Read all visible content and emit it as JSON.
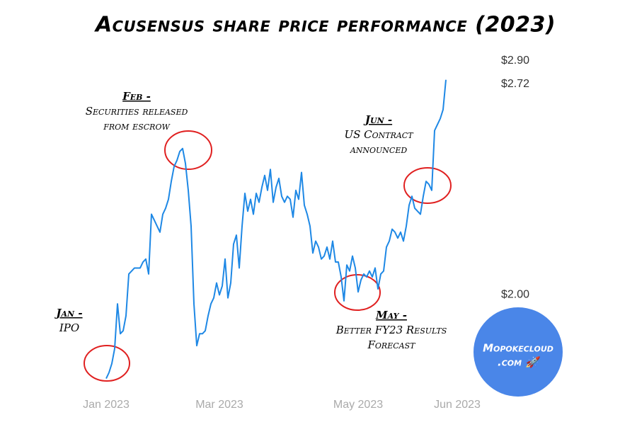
{
  "chart_data": {
    "type": "line",
    "title": "Acusensus share price performance (2023)",
    "color": "#1e88e5",
    "categories": [
      "Jan 2023",
      null,
      null,
      null,
      null,
      null,
      null,
      null,
      null,
      null,
      null,
      null,
      null,
      null,
      null,
      null,
      null,
      null,
      null,
      null,
      null,
      null,
      null,
      null,
      null,
      null,
      null,
      null,
      null,
      null,
      null,
      null,
      null,
      null,
      null,
      null,
      null,
      null,
      null,
      null,
      "Mar 2023",
      null,
      null,
      null,
      null,
      null,
      null,
      null,
      null,
      null,
      null,
      null,
      null,
      null,
      null,
      null,
      null,
      null,
      null,
      null,
      null,
      null,
      null,
      null,
      null,
      null,
      null,
      null,
      null,
      null,
      null,
      null,
      null,
      null,
      null,
      null,
      null,
      null,
      null,
      null,
      null,
      null,
      null,
      null,
      null,
      null,
      null,
      null,
      null,
      "May 2023",
      null,
      null,
      null,
      null,
      null,
      null,
      null,
      null,
      null,
      null,
      null,
      null,
      null,
      null,
      null,
      null,
      null,
      null,
      null,
      null,
      null,
      null,
      null,
      null,
      null,
      null,
      null,
      null,
      null,
      null,
      null,
      null,
      null,
      null,
      "Jun 2023"
    ],
    "values": [
      1.72,
      1.74,
      1.77,
      1.82,
      1.97,
      1.87,
      1.88,
      1.93,
      2.07,
      2.08,
      2.09,
      2.09,
      2.09,
      2.11,
      2.12,
      2.07,
      2.27,
      2.25,
      2.23,
      2.21,
      2.27,
      2.29,
      2.32,
      2.38,
      2.43,
      2.45,
      2.48,
      2.49,
      2.44,
      2.35,
      2.23,
      1.97,
      1.83,
      1.87,
      1.87,
      1.88,
      1.93,
      1.97,
      1.99,
      2.04,
      2.0,
      2.03,
      2.12,
      1.99,
      2.04,
      2.17,
      2.2,
      2.09,
      2.23,
      2.34,
      2.28,
      2.32,
      2.27,
      2.34,
      2.31,
      2.36,
      2.4,
      2.35,
      2.42,
      2.31,
      2.36,
      2.39,
      2.33,
      2.31,
      2.33,
      2.32,
      2.26,
      2.35,
      2.32,
      2.41,
      2.3,
      2.27,
      2.23,
      2.14,
      2.18,
      2.16,
      2.12,
      2.13,
      2.16,
      2.12,
      2.18,
      2.11,
      2.11,
      2.06,
      1.98,
      2.1,
      2.08,
      2.13,
      2.09,
      2.01,
      2.05,
      2.07,
      2.06,
      2.08,
      2.06,
      2.09,
      2.02,
      2.07,
      2.08,
      2.16,
      2.18,
      2.22,
      2.21,
      2.19,
      2.21,
      2.18,
      2.23,
      2.3,
      2.33,
      2.29,
      2.28,
      2.27,
      2.33,
      2.38,
      2.37,
      2.35,
      2.55,
      2.57,
      2.59,
      2.62,
      2.72,
      null,
      null,
      null,
      null
    ],
    "ylim": [
      1.7,
      2.75
    ],
    "yticks": [
      {
        "value": 2.0,
        "label": "$2.00"
      },
      {
        "value": 2.72,
        "label": "$2.72"
      },
      {
        "value": 2.9,
        "label": "$2.90"
      }
    ],
    "annotations": [
      {
        "heading": "Jan -",
        "lines": [
          "IPO"
        ]
      },
      {
        "heading": "Feb -",
        "lines": [
          "Securities released",
          "from escrow"
        ]
      },
      {
        "heading": "Jun -",
        "lines": [
          "US Contract",
          "announced"
        ]
      },
      {
        "heading": "May -",
        "lines": [
          "Better FY23 Results",
          "Forecast"
        ]
      }
    ],
    "badge": [
      "Mopokecloud",
      ".com 🚀"
    ]
  }
}
